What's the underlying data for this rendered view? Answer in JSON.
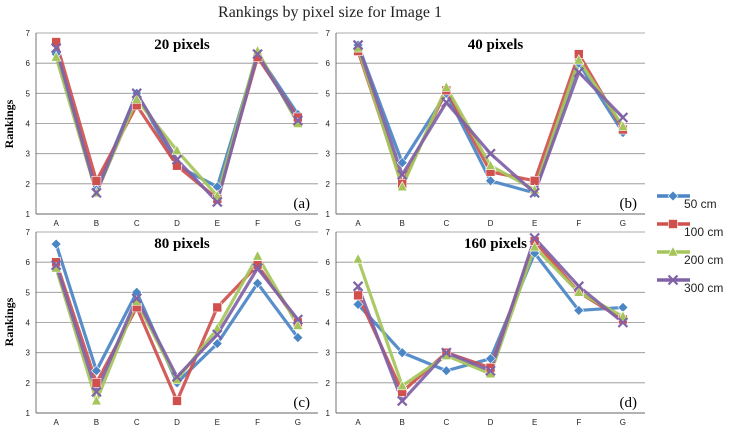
{
  "chart_data": {
    "type": "line",
    "title": "Rankings by pixel size for Image 1",
    "ylabel": "Rankings",
    "categories": [
      "A",
      "B",
      "C",
      "D",
      "E",
      "F",
      "G"
    ],
    "ylim": [
      1,
      7
    ],
    "yticks": [
      "1",
      "2",
      "3",
      "4",
      "5",
      "6",
      "7"
    ],
    "grid": true,
    "legend_position": "right",
    "series_styles": [
      {
        "name": "50 cm",
        "color": "#4a86c5",
        "marker": "diamond"
      },
      {
        "name": "100 cm",
        "color": "#d0504e",
        "marker": "square"
      },
      {
        "name": "200 cm",
        "color": "#a5c55b",
        "marker": "triangle"
      },
      {
        "name": "300 cm",
        "color": "#8062a6",
        "marker": "x"
      }
    ],
    "panels": [
      {
        "title": "20 pixels",
        "label": "(a)",
        "series": [
          {
            "name": "50 cm",
            "values": [
              6.3,
              1.8,
              5.0,
              2.6,
              1.9,
              6.3,
              4.3
            ]
          },
          {
            "name": "100 cm",
            "values": [
              6.7,
              2.1,
              4.6,
              2.6,
              1.5,
              6.2,
              4.2
            ]
          },
          {
            "name": "200 cm",
            "values": [
              6.2,
              1.7,
              4.8,
              3.1,
              1.6,
              6.4,
              4.0
            ]
          },
          {
            "name": "300 cm",
            "values": [
              6.5,
              1.7,
              5.0,
              2.8,
              1.4,
              6.3,
              4.1
            ]
          }
        ]
      },
      {
        "title": "40 pixels",
        "label": "(b)",
        "series": [
          {
            "name": "50 cm",
            "values": [
              6.6,
              2.7,
              5.0,
              2.1,
              1.7,
              6.0,
              3.7
            ]
          },
          {
            "name": "100 cm",
            "values": [
              6.4,
              2.0,
              5.1,
              2.4,
              2.1,
              6.3,
              3.8
            ]
          },
          {
            "name": "200 cm",
            "values": [
              6.5,
              1.9,
              5.2,
              2.6,
              1.8,
              6.1,
              3.9
            ]
          },
          {
            "name": "300 cm",
            "values": [
              6.6,
              2.3,
              4.7,
              3.0,
              1.7,
              5.7,
              4.2
            ]
          }
        ]
      },
      {
        "title": "80 pixels",
        "label": "(c)",
        "series": [
          {
            "name": "50 cm",
            "values": [
              6.6,
              2.4,
              5.0,
              2.0,
              3.3,
              5.3,
              3.5
            ]
          },
          {
            "name": "100 cm",
            "values": [
              6.0,
              2.0,
              4.5,
              1.4,
              4.5,
              5.9,
              4.0
            ]
          },
          {
            "name": "200 cm",
            "values": [
              5.8,
              1.4,
              4.7,
              2.1,
              3.8,
              6.2,
              3.9
            ]
          },
          {
            "name": "300 cm",
            "values": [
              5.9,
              1.7,
              4.8,
              2.2,
              3.6,
              5.8,
              4.1
            ]
          }
        ]
      },
      {
        "title": "160 pixels",
        "label": "(d)",
        "series": [
          {
            "name": "50 cm",
            "values": [
              4.6,
              3.0,
              2.4,
              2.8,
              6.3,
              4.4,
              4.5
            ]
          },
          {
            "name": "100 cm",
            "values": [
              4.9,
              1.7,
              3.0,
              2.5,
              6.7,
              5.0,
              4.1
            ]
          },
          {
            "name": "200 cm",
            "values": [
              6.1,
              1.9,
              2.9,
              2.3,
              6.5,
              5.0,
              4.2
            ]
          },
          {
            "name": "300 cm",
            "values": [
              5.2,
              1.4,
              3.0,
              2.4,
              6.8,
              5.2,
              4.0
            ]
          }
        ]
      }
    ]
  }
}
